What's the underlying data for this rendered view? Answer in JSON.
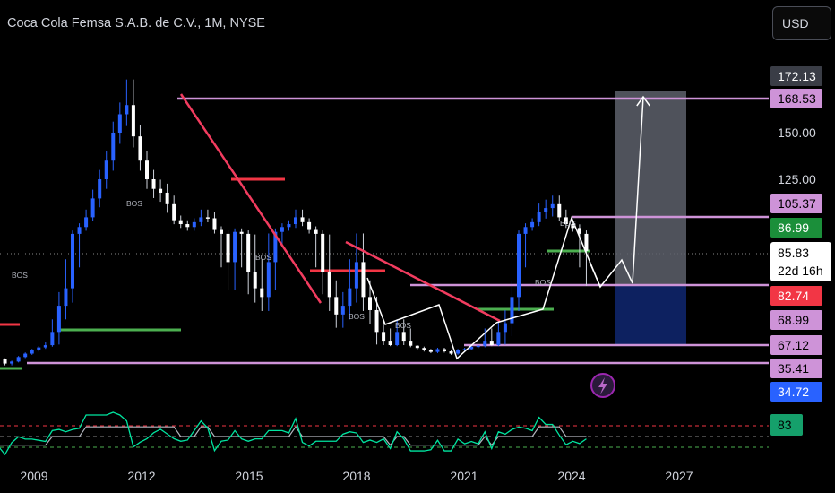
{
  "header": {
    "symbol_title": "Coca Cola Femsa S.A.B. de C.V., 1M, NYSE",
    "currency": "USD"
  },
  "colors": {
    "background": "#000000",
    "bull_candle": "#2962ff",
    "bear_candle": "#ffffff",
    "trend_line": "#f23c5f",
    "level_line": "#ce93d8",
    "support_green": "#4caf50",
    "resistance_red": "#f23645",
    "pattern_white": "#ffffff",
    "target_gray": "#5d606b",
    "stop_navy": "#0d2160",
    "rsi_line": "#00e5a0",
    "rsi_ma": "#b2b5be"
  },
  "chart_data": {
    "type": "candlestick",
    "title": "Coca Cola Femsa S.A.B. de C.V., 1M, NYSE",
    "x_tick_labels": [
      "2009",
      "2012",
      "2015",
      "2018",
      "2021",
      "2024",
      "2027"
    ],
    "y_tick_labels": [
      150.0,
      125.0
    ],
    "price_labels": [
      {
        "text": "172.13",
        "kind": "gray"
      },
      {
        "text": "168.53",
        "kind": "purple"
      },
      {
        "text": "150.00",
        "kind": "plain"
      },
      {
        "text": "125.00",
        "kind": "plain"
      },
      {
        "text": "105.37",
        "kind": "purple"
      },
      {
        "text": "86.99",
        "kind": "green"
      },
      {
        "text": "85.83",
        "kind": "current",
        "countdown": "22d 16h"
      },
      {
        "text": "82.74",
        "kind": "red"
      },
      {
        "text": "68.99",
        "kind": "purple"
      },
      {
        "text": "67.12",
        "kind": "purple"
      },
      {
        "text": "35.41",
        "kind": "purple"
      },
      {
        "text": "34.72",
        "kind": "blue"
      }
    ],
    "annotations": [
      "BOS",
      "BOS",
      "BOS",
      "BOS",
      "BOS",
      "BOS",
      "BOS"
    ],
    "horizontal_levels": [
      168.53,
      105.37,
      82.74,
      67.12,
      35.41
    ],
    "current_price": 85.83,
    "position_tool": {
      "target": 168.53,
      "entry": 82.74,
      "stop": 67.12
    },
    "monthly_closes": [
      42,
      35,
      38,
      46,
      52,
      58,
      63,
      67,
      72,
      78,
      82,
      88,
      95,
      105,
      115,
      125,
      135,
      150,
      160,
      165,
      148,
      135,
      125,
      120,
      118,
      112,
      102,
      98,
      95,
      100,
      105,
      104,
      92,
      88,
      85,
      90,
      88,
      84,
      82,
      80,
      85,
      90,
      95,
      98,
      105,
      100,
      92,
      88,
      84,
      80,
      76,
      78,
      82,
      85,
      80,
      77,
      72,
      70,
      68,
      72,
      70,
      66,
      62,
      58,
      55,
      60,
      56,
      52,
      58,
      60,
      64,
      66,
      70,
      68,
      72,
      74,
      80,
      88,
      95,
      100,
      108,
      110,
      112,
      105,
      98,
      94,
      88,
      86
    ],
    "rsi": {
      "upper_band_label": "83",
      "current": 83,
      "levels": [
        70,
        50,
        30
      ]
    }
  }
}
